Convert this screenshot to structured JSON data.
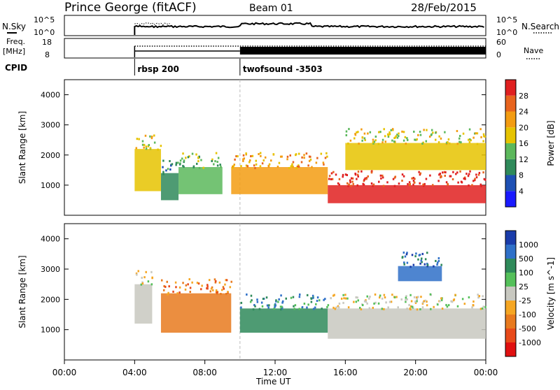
{
  "header": {
    "station": "Prince George (fitACF)",
    "beam": "Beam 01",
    "date": "28/Feb/2015"
  },
  "params_panel": {
    "nsky_label": "N.Sky",
    "nsky_ticks": [
      "10^5",
      "10^0"
    ],
    "nsearch_label": "N.Search",
    "nsearch_ticks": [
      "10^5",
      "10^0"
    ],
    "freq_label": "Freq.",
    "freq_unit": "[MHz]",
    "freq_ticks": [
      "18",
      "8"
    ],
    "nave_label": "Nave",
    "nave_ticks": [
      "60",
      "0"
    ],
    "cpid_label": "CPID",
    "cpid_modes": [
      {
        "name": "rbsp 200",
        "start_hour": 4.0
      },
      {
        "name": "twofsound -3503",
        "start_hour": 10.0
      }
    ]
  },
  "colors": {
    "power_scale": [
      "#1a1aff",
      "#1e50b4",
      "#2f8a5a",
      "#5cb85c",
      "#e6c300",
      "#f39c12",
      "#e8641e",
      "#e02020"
    ],
    "velocity_scale": [
      "#1a3caa",
      "#2f70c8",
      "#2f8a5a",
      "#55c05a",
      "#c8c8c0",
      "#f5a623",
      "#e87a1e",
      "#e84a1a",
      "#e01010"
    ]
  },
  "chart_data": [
    {
      "type": "heatmap",
      "title": "Power",
      "ylabel": "Slant Range [km]",
      "yticks": [
        "1000",
        "2000",
        "3000",
        "4000"
      ],
      "ylim": [
        0,
        4500
      ],
      "colorbar": {
        "label": "Power [dB]",
        "ticks": [
          "4",
          "8",
          "12",
          "16",
          "20",
          "24",
          "28"
        ],
        "range": [
          0,
          32
        ]
      },
      "regions": [
        {
          "t0": 4.0,
          "t1": 5.5,
          "r0": 800,
          "r1": 2200,
          "value": 16
        },
        {
          "t0": 5.5,
          "t1": 6.5,
          "r0": 500,
          "r1": 1400,
          "value": 8
        },
        {
          "t0": 6.5,
          "t1": 9.0,
          "r0": 700,
          "r1": 1600,
          "value": 12
        },
        {
          "t0": 9.5,
          "t1": 15.0,
          "r0": 700,
          "r1": 1600,
          "value": 20
        },
        {
          "t0": 15.0,
          "t1": 24.0,
          "r0": 400,
          "r1": 1000,
          "value": 28
        },
        {
          "t0": 16.0,
          "t1": 24.0,
          "r0": 1500,
          "r1": 2400,
          "value": 16
        }
      ]
    },
    {
      "type": "heatmap",
      "title": "Velocity",
      "ylabel": "Slant Range [km]",
      "yticks": [
        "1000",
        "2000",
        "3000",
        "4000"
      ],
      "ylim": [
        0,
        4500
      ],
      "colorbar": {
        "label": "Velocity [m s^-1]",
        "ticks": [
          "1000",
          "500",
          "100",
          "25",
          "-25",
          "-100",
          "-500",
          "-1000"
        ]
      },
      "regions": [
        {
          "t0": 4.0,
          "t1": 5.0,
          "r0": 1200,
          "r1": 2500,
          "value": 0
        },
        {
          "t0": 5.5,
          "t1": 9.5,
          "r0": 900,
          "r1": 2200,
          "value": -500
        },
        {
          "t0": 10.0,
          "t1": 15.0,
          "r0": 900,
          "r1": 1700,
          "value": 100
        },
        {
          "t0": 15.0,
          "t1": 24.0,
          "r0": 700,
          "r1": 1700,
          "value": 0
        },
        {
          "t0": 19.0,
          "t1": 21.5,
          "r0": 2600,
          "r1": 3100,
          "value": 500
        }
      ]
    }
  ],
  "xaxis": {
    "ticks": [
      "00:00",
      "04:00",
      "08:00",
      "12:00",
      "16:00",
      "20:00",
      "00:00"
    ],
    "label": "Time UT",
    "range_hours": [
      0,
      24
    ]
  }
}
